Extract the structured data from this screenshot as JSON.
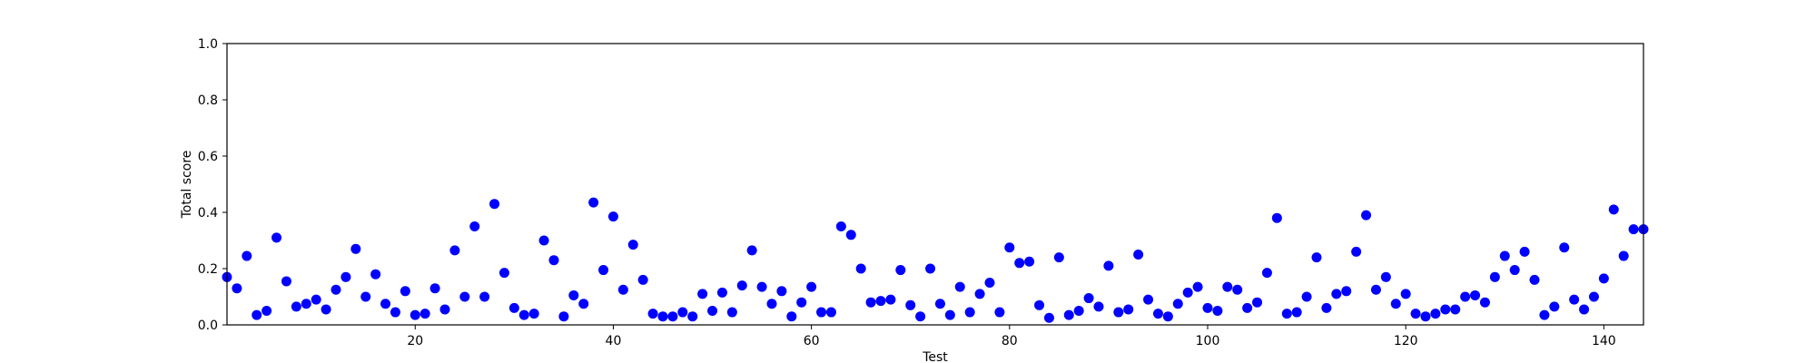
{
  "chart_data": {
    "type": "scatter",
    "title": "",
    "xlabel": "Test",
    "ylabel": "Total score",
    "xlim": [
      1,
      144
    ],
    "ylim": [
      0.0,
      1.0
    ],
    "x_ticks": [
      20,
      40,
      60,
      80,
      100,
      120,
      140
    ],
    "x_tick_labels": [
      "20",
      "40",
      "60",
      "80",
      "100",
      "120",
      "140"
    ],
    "y_ticks": [
      0.0,
      0.2,
      0.4,
      0.6,
      0.8,
      1.0
    ],
    "y_tick_labels": [
      "0.0",
      "0.2",
      "0.4",
      "0.6",
      "0.8",
      "1.0"
    ],
    "grid": false,
    "marker_color": "#0000ff",
    "series": [
      {
        "x": [
          1,
          2,
          3,
          4,
          5,
          6,
          7,
          8,
          9,
          10,
          11,
          12,
          13,
          14,
          15,
          16,
          17,
          18,
          19,
          20,
          21,
          22,
          23,
          24,
          25,
          26,
          27,
          28,
          29,
          30,
          31,
          32,
          33,
          34,
          35,
          36,
          37,
          38,
          39,
          40,
          41,
          42,
          43,
          44,
          45,
          46,
          47,
          48,
          49,
          50,
          51,
          52,
          53,
          54,
          55,
          56,
          57,
          58,
          59,
          60,
          61,
          62,
          63,
          64,
          65,
          66,
          67,
          68,
          69,
          70,
          71,
          72,
          73,
          74,
          75,
          76,
          77,
          78,
          79,
          80,
          81,
          82,
          83,
          84,
          85,
          86,
          87,
          88,
          89,
          90,
          91,
          92,
          93,
          94,
          95,
          96,
          97,
          98,
          99,
          100,
          101,
          102,
          103,
          104,
          105,
          106,
          107,
          108,
          109,
          110,
          111,
          112,
          113,
          114,
          115,
          116,
          117,
          118,
          119,
          120,
          121,
          122,
          123,
          124,
          125,
          126,
          127,
          128,
          129,
          130,
          131,
          132,
          133,
          134,
          135,
          136,
          137,
          138,
          139,
          140,
          141,
          142,
          143,
          144
        ],
        "y": [
          0.17,
          0.13,
          0.245,
          0.035,
          0.05,
          0.31,
          0.155,
          0.065,
          0.075,
          0.09,
          0.055,
          0.125,
          0.17,
          0.27,
          0.1,
          0.18,
          0.075,
          0.045,
          0.12,
          0.035,
          0.04,
          0.13,
          0.055,
          0.265,
          0.1,
          0.35,
          0.1,
          0.43,
          0.185,
          0.06,
          0.035,
          0.04,
          0.3,
          0.23,
          0.03,
          0.105,
          0.075,
          0.435,
          0.195,
          0.385,
          0.125,
          0.285,
          0.16,
          0.04,
          0.03,
          0.03,
          0.045,
          0.03,
          0.11,
          0.05,
          0.115,
          0.045,
          0.14,
          0.265,
          0.135,
          0.075,
          0.12,
          0.03,
          0.08,
          0.135,
          0.045,
          0.045,
          0.35,
          0.32,
          0.2,
          0.08,
          0.085,
          0.09,
          0.195,
          0.07,
          0.03,
          0.2,
          0.075,
          0.035,
          0.135,
          0.045,
          0.11,
          0.15,
          0.045,
          0.275,
          0.22,
          0.225,
          0.07,
          0.025,
          0.24,
          0.035,
          0.05,
          0.095,
          0.065,
          0.21,
          0.045,
          0.055,
          0.25,
          0.09,
          0.04,
          0.03,
          0.075,
          0.115,
          0.135,
          0.06,
          0.05,
          0.135,
          0.125,
          0.06,
          0.08,
          0.185,
          0.38,
          0.04,
          0.045,
          0.1,
          0.24,
          0.06,
          0.11,
          0.12,
          0.26,
          0.39,
          0.125,
          0.17,
          0.075,
          0.11,
          0.04,
          0.03,
          0.04,
          0.055,
          0.055,
          0.1,
          0.105,
          0.08,
          0.17,
          0.245,
          0.195,
          0.26,
          0.16,
          0.035,
          0.065,
          0.275,
          0.09,
          0.055,
          0.1,
          0.165,
          0.41,
          0.245,
          0.34,
          0.34
        ]
      }
    ]
  }
}
